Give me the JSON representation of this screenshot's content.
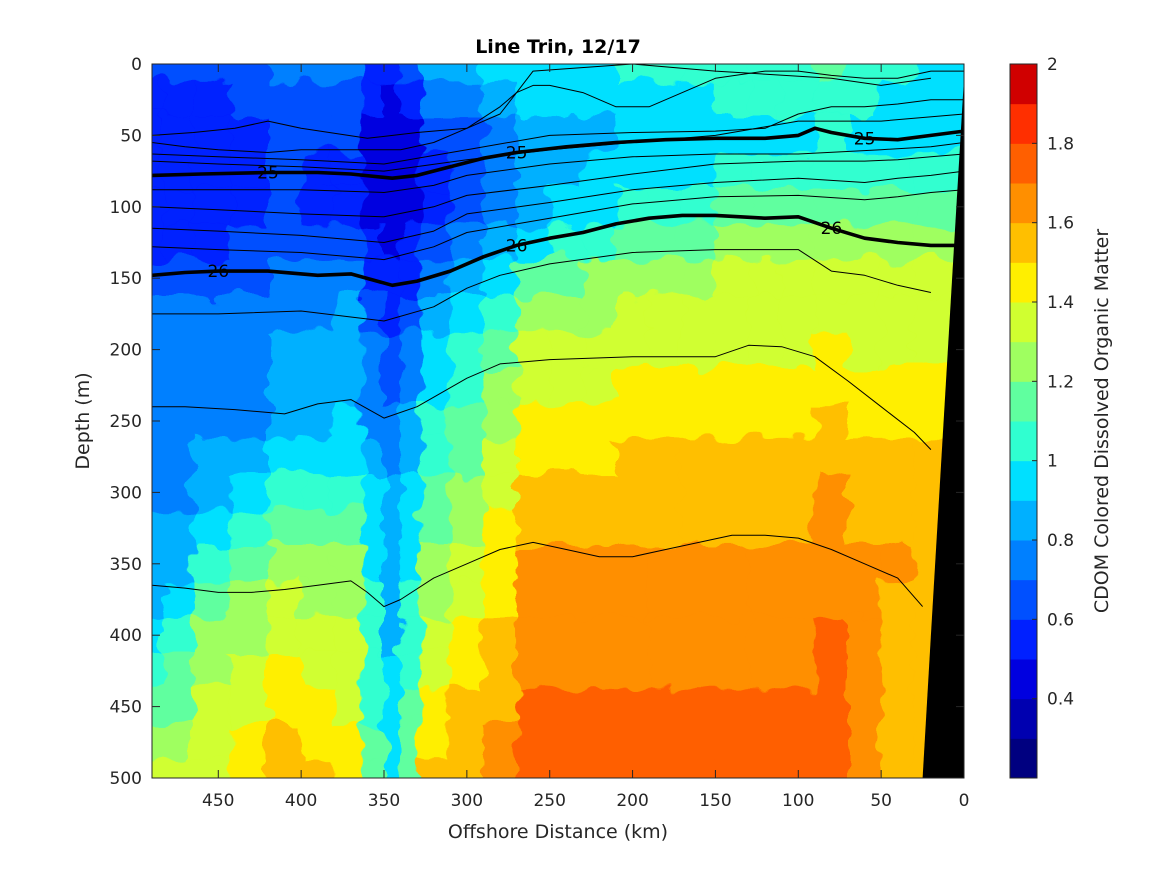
{
  "chart_data": {
    "type": "heatmap",
    "subtype": "filled-contour section with density contour overlay",
    "title": "Line Trin, 12/17",
    "xlabel": "Offshore Distance (km)",
    "ylabel": "Depth (m)",
    "colorbar_label": "CDOM Colored Dissolved Organic Matter",
    "xlim": [
      490,
      0
    ],
    "ylim": [
      0,
      500
    ],
    "y_reversed": true,
    "x_ticks": [
      450,
      400,
      350,
      300,
      250,
      200,
      150,
      100,
      50,
      0
    ],
    "x_tick_labels": [
      "450",
      "400",
      "350",
      "300",
      "250",
      "200",
      "150",
      "100",
      "50",
      "0"
    ],
    "y_ticks": [
      0,
      50,
      100,
      150,
      200,
      250,
      300,
      350,
      400,
      450,
      500
    ],
    "y_tick_labels": [
      "0",
      "50",
      "100",
      "150",
      "200",
      "250",
      "300",
      "350",
      "400",
      "450",
      "500"
    ],
    "colorbar": {
      "range": [
        0.2,
        2.0
      ],
      "levels": [
        0.2,
        0.3,
        0.4,
        0.5,
        0.6,
        0.7,
        0.8,
        0.9,
        1.0,
        1.1,
        1.2,
        1.3,
        1.4,
        1.5,
        1.6,
        1.7,
        1.8,
        1.9,
        2.0
      ],
      "ticks": [
        0.4,
        0.6,
        0.8,
        1,
        1.2,
        1.4,
        1.6,
        1.8,
        2
      ],
      "tick_labels": [
        "0.4",
        "0.6",
        "0.8",
        "1",
        "1.2",
        "1.4",
        "1.6",
        "1.8",
        "2"
      ],
      "colors": [
        "#000080",
        "#0000b0",
        "#0000e0",
        "#0020ff",
        "#0050ff",
        "#0080ff",
        "#00b0ff",
        "#00e0ff",
        "#30ffd0",
        "#60ff9f",
        "#9fff60",
        "#d0ff30",
        "#ffef00",
        "#ffbf00",
        "#ff8f00",
        "#ff5f00",
        "#ff2f00",
        "#d00000",
        "#a00000"
      ]
    },
    "cdom_grid": {
      "x_km": [
        490,
        475,
        455,
        430,
        410,
        390,
        370,
        355,
        345,
        335,
        320,
        300,
        280,
        260,
        240,
        220,
        200,
        180,
        160,
        140,
        120,
        100,
        80,
        60,
        40,
        20,
        0
      ],
      "depth_m": [
        0,
        25,
        50,
        75,
        100,
        125,
        150,
        175,
        200,
        225,
        250,
        275,
        300,
        325,
        350,
        375,
        400,
        425,
        450,
        475,
        500
      ],
      "control_profiles": [
        {
          "x_km": 490,
          "values": [
            0.6,
            0.55,
            0.5,
            0.5,
            0.5,
            0.55,
            0.6,
            0.7,
            0.7,
            0.7,
            0.7,
            0.75,
            0.75,
            0.8,
            0.8,
            0.85,
            0.9,
            1.0,
            1.1,
            1.2,
            1.3
          ]
        },
        {
          "x_km": 455,
          "values": [
            0.6,
            0.55,
            0.5,
            0.5,
            0.5,
            0.55,
            0.6,
            0.7,
            0.7,
            0.7,
            0.7,
            0.8,
            0.8,
            0.9,
            1.0,
            1.1,
            1.2,
            1.25,
            1.3,
            1.35,
            1.35
          ]
        },
        {
          "x_km": 410,
          "values": [
            0.7,
            0.65,
            0.6,
            0.6,
            0.6,
            0.65,
            0.7,
            0.75,
            0.8,
            0.8,
            0.85,
            0.9,
            1.0,
            1.1,
            1.2,
            1.3,
            1.35,
            1.4,
            1.45,
            1.5,
            1.55
          ]
        },
        {
          "x_km": 370,
          "values": [
            0.7,
            0.65,
            0.6,
            0.55,
            0.55,
            0.6,
            0.7,
            0.8,
            0.85,
            0.85,
            0.9,
            0.95,
            1.05,
            1.15,
            1.2,
            1.25,
            1.3,
            1.3,
            1.35,
            1.4,
            1.45
          ]
        },
        {
          "x_km": 345,
          "values": [
            0.5,
            0.45,
            0.4,
            0.4,
            0.45,
            0.45,
            0.5,
            0.55,
            0.6,
            0.65,
            0.7,
            0.75,
            0.8,
            0.8,
            0.85,
            0.85,
            0.85,
            0.9,
            0.9,
            0.9,
            0.9
          ]
        },
        {
          "x_km": 320,
          "values": [
            0.8,
            0.7,
            0.6,
            0.55,
            0.55,
            0.6,
            0.7,
            0.8,
            0.9,
            0.95,
            1.0,
            1.05,
            1.1,
            1.15,
            1.2,
            1.25,
            1.3,
            1.35,
            1.4,
            1.45,
            1.5
          ]
        },
        {
          "x_km": 260,
          "values": [
            0.95,
            0.9,
            0.85,
            0.8,
            0.85,
            0.95,
            1.1,
            1.2,
            1.3,
            1.35,
            1.4,
            1.45,
            1.5,
            1.55,
            1.6,
            1.6,
            1.65,
            1.65,
            1.7,
            1.7,
            1.7
          ]
        },
        {
          "x_km": 200,
          "values": [
            1.0,
            0.95,
            0.9,
            0.95,
            1.05,
            1.15,
            1.25,
            1.3,
            1.35,
            1.4,
            1.45,
            1.5,
            1.5,
            1.55,
            1.6,
            1.6,
            1.65,
            1.65,
            1.7,
            1.7,
            1.7
          ]
        },
        {
          "x_km": 140,
          "values": [
            1.0,
            1.0,
            0.95,
            1.0,
            1.1,
            1.2,
            1.3,
            1.3,
            1.35,
            1.4,
            1.45,
            1.5,
            1.5,
            1.55,
            1.6,
            1.6,
            1.65,
            1.65,
            1.7,
            1.7,
            1.7
          ]
        },
        {
          "x_km": 80,
          "values": [
            1.1,
            1.05,
            1.0,
            1.05,
            1.15,
            1.2,
            1.3,
            1.35,
            1.4,
            1.45,
            1.5,
            1.55,
            1.6,
            1.6,
            1.65,
            1.65,
            1.7,
            1.7,
            1.75,
            1.75,
            1.75
          ]
        },
        {
          "x_km": 40,
          "values": [
            1.0,
            0.95,
            0.9,
            1.0,
            1.1,
            1.2,
            1.3,
            1.35,
            1.35,
            1.4,
            1.45,
            1.5,
            1.55,
            1.55,
            1.6,
            1.55,
            1.5,
            1.5,
            1.5,
            1.5,
            1.5
          ]
        },
        {
          "x_km": 0,
          "values": [
            0.9,
            0.9,
            0.9,
            1.0,
            1.1,
            1.2,
            1.3,
            1.3,
            1.35,
            1.4,
            1.45,
            1.5,
            1.5,
            1.5,
            1.5,
            1.5,
            1.5,
            1.5,
            1.5,
            1.5,
            1.5
          ]
        }
      ]
    },
    "bathymetry": {
      "fill": "#000000",
      "x_km": [
        0,
        0,
        20,
        25,
        0
      ],
      "depth_m": [
        10,
        10,
        400,
        500,
        500
      ]
    },
    "contours": [
      {
        "label": "",
        "bold": false,
        "x_km": [
          490,
          465,
          440,
          420,
          400,
          360,
          330,
          300,
          280,
          270,
          260,
          200,
          150,
          80,
          50,
          20
        ],
        "depth_m": [
          50,
          48,
          45,
          40,
          45,
          52,
          48,
          45,
          35,
          20,
          5,
          0,
          5,
          10,
          15,
          10
        ]
      },
      {
        "label": "",
        "bold": false,
        "x_km": [
          490,
          470,
          450,
          420,
          400,
          380,
          360,
          340,
          320,
          300,
          280,
          270,
          260,
          250,
          230,
          210,
          190,
          170,
          150,
          120,
          100,
          80,
          60,
          40,
          20,
          0
        ],
        "depth_m": [
          55,
          58,
          60,
          62,
          60,
          60,
          60,
          60,
          55,
          45,
          30,
          20,
          15,
          15,
          20,
          30,
          30,
          20,
          10,
          5,
          5,
          8,
          10,
          10,
          5,
          5
        ]
      },
      {
        "label": "",
        "bold": false,
        "x_km": [
          490,
          450,
          400,
          350,
          300,
          250,
          200,
          150,
          120,
          100,
          80,
          60,
          40,
          20,
          0
        ],
        "depth_m": [
          63,
          65,
          67,
          70,
          60,
          50,
          48,
          47,
          45,
          35,
          30,
          30,
          28,
          25,
          25
        ]
      },
      {
        "label": "",
        "bold": false,
        "x_km": [
          490,
          450,
          400,
          350,
          300,
          250,
          200,
          150,
          100,
          50,
          0
        ],
        "depth_m": [
          68,
          70,
          72,
          75,
          67,
          60,
          55,
          50,
          40,
          40,
          35
        ]
      },
      {
        "label": "25",
        "bold": true,
        "x_km": [
          490,
          460,
          420,
          390,
          370,
          345,
          330,
          310,
          290,
          270,
          240,
          210,
          180,
          150,
          120,
          100,
          90,
          80,
          60,
          40,
          20,
          0
        ],
        "depth_m": [
          78,
          77,
          76,
          76,
          77,
          80,
          78,
          72,
          66,
          62,
          58,
          55,
          53,
          52,
          52,
          50,
          45,
          48,
          52,
          53,
          50,
          47
        ]
      },
      {
        "label": "",
        "bold": false,
        "x_km": [
          490,
          450,
          400,
          350,
          320,
          300,
          250,
          200,
          150,
          100,
          50,
          20,
          0
        ],
        "depth_m": [
          88,
          88,
          88,
          90,
          85,
          78,
          70,
          65,
          63,
          63,
          60,
          58,
          55
        ]
      },
      {
        "label": "",
        "bold": false,
        "x_km": [
          490,
          450,
          400,
          350,
          320,
          300,
          250,
          200,
          150,
          100,
          60,
          40,
          20,
          0
        ],
        "depth_m": [
          100,
          102,
          105,
          107,
          100,
          92,
          85,
          77,
          70,
          68,
          68,
          67,
          65,
          63
        ]
      },
      {
        "label": "",
        "bold": false,
        "x_km": [
          490,
          450,
          400,
          350,
          320,
          300,
          250,
          200,
          150,
          100,
          60,
          40,
          20,
          0
        ],
        "depth_m": [
          115,
          117,
          120,
          125,
          117,
          105,
          97,
          88,
          83,
          80,
          83,
          80,
          78,
          75
        ]
      },
      {
        "label": "",
        "bold": false,
        "x_km": [
          490,
          450,
          400,
          350,
          320,
          300,
          250,
          200,
          150,
          100,
          60,
          40,
          20,
          0
        ],
        "depth_m": [
          128,
          130,
          132,
          137,
          128,
          118,
          108,
          98,
          93,
          92,
          95,
          93,
          90,
          88
        ]
      },
      {
        "label": "26",
        "bold": true,
        "x_km": [
          490,
          470,
          450,
          420,
          390,
          370,
          345,
          330,
          310,
          290,
          270,
          250,
          230,
          210,
          190,
          170,
          150,
          120,
          100,
          80,
          60,
          40,
          20,
          0
        ],
        "depth_m": [
          148,
          146,
          145,
          145,
          148,
          147,
          155,
          152,
          145,
          135,
          127,
          122,
          118,
          112,
          108,
          106,
          106,
          108,
          107,
          115,
          122,
          125,
          127,
          127
        ]
      },
      {
        "label": "",
        "bold": false,
        "x_km": [
          490,
          450,
          400,
          350,
          320,
          300,
          280,
          250,
          200,
          150,
          100,
          80,
          60,
          40,
          20
        ],
        "depth_m": [
          175,
          175,
          173,
          180,
          170,
          157,
          148,
          140,
          132,
          130,
          130,
          145,
          148,
          155,
          160
        ]
      },
      {
        "label": "",
        "bold": false,
        "x_km": [
          490,
          470,
          440,
          410,
          390,
          370,
          350,
          330,
          300,
          280,
          250,
          200,
          150,
          130,
          110,
          90,
          70,
          50,
          30,
          20
        ],
        "depth_m": [
          240,
          240,
          242,
          245,
          238,
          235,
          248,
          240,
          220,
          210,
          207,
          205,
          205,
          197,
          198,
          205,
          222,
          240,
          258,
          270
        ]
      },
      {
        "label": "",
        "bold": false,
        "x_km": [
          490,
          470,
          450,
          430,
          410,
          390,
          370,
          360,
          350,
          340,
          320,
          300,
          280,
          260,
          240,
          220,
          200,
          180,
          160,
          140,
          120,
          100,
          80,
          60,
          40,
          25
        ],
        "depth_m": [
          365,
          367,
          370,
          370,
          368,
          365,
          362,
          370,
          380,
          375,
          360,
          350,
          340,
          335,
          340,
          345,
          345,
          340,
          335,
          330,
          330,
          332,
          340,
          350,
          360,
          380
        ]
      }
    ]
  }
}
